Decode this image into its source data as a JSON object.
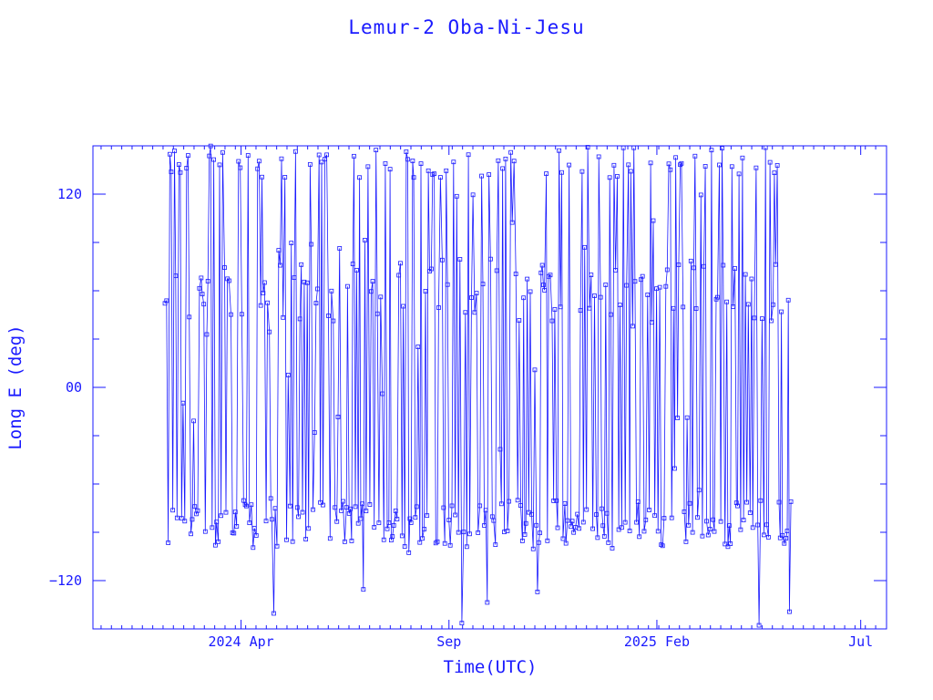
{
  "chart_data": {
    "type": "line",
    "title": "Lemur-2 Oba-Ni-Jesu",
    "xlabel": "Time(UTC)",
    "ylabel": "Long E (deg)",
    "ylim": [
      -150,
      150
    ],
    "yticks": [
      -120,
      0,
      120
    ],
    "ytick_labels": [
      "−120",
      "00",
      "120"
    ],
    "xlim": [
      "2023-12-14",
      "2025-07-20"
    ],
    "xticks": [
      {
        "date": "2024-04-01",
        "label": "2024 Apr"
      },
      {
        "date": "2024-09-01",
        "label": "Sep"
      },
      {
        "date": "2025-02-01",
        "label": "2025 Feb"
      },
      {
        "date": "2025-07-01",
        "label": "Jul"
      }
    ],
    "grid": false,
    "markers": "small open squares",
    "color": "#1a1aff",
    "data_start": "2024-02-05",
    "data_end": "2025-05-11",
    "series": [
      {
        "values": {
          "start": "2024-02-05",
          "end": "2025-05-11",
          "note_values": "longitude oscillates between about -150 and 150 deg, with frequent wraps; clusters near -80, 60 and 150 deg"
        }
      }
    ]
  }
}
